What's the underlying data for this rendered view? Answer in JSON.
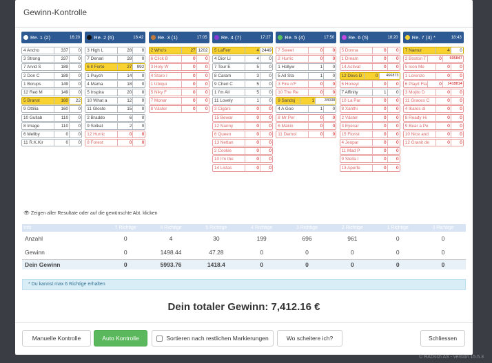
{
  "modal": {
    "title": "Gewinn-Kontrolle"
  },
  "races": [
    {
      "label": "Re. 1 (2)",
      "time": "16:20",
      "color": "#2d5a93",
      "dot": "#ffffff",
      "runners": [
        {
          "name": "4 Ancho",
          "quote": "337",
          "val": "0"
        },
        {
          "name": "3 Strong",
          "quote": "337",
          "val": "0"
        },
        {
          "name": "7 Arvid S",
          "quote": "189",
          "val": "0"
        },
        {
          "name": "2 Don C",
          "quote": "189",
          "val": "0"
        },
        {
          "name": "1 Borups",
          "quote": "149",
          "val": "0"
        },
        {
          "name": "12 Red M",
          "quote": "149",
          "val": "0"
        },
        {
          "name": "5 Branst",
          "quote": "160",
          "val": "22",
          "sel": true
        },
        {
          "name": "9 Ottilia",
          "quote": "160",
          "val": "0"
        },
        {
          "name": "10 Gullab",
          "quote": "110",
          "val": "0"
        },
        {
          "name": "8 Image",
          "quote": "110",
          "val": "0"
        },
        {
          "name": "6 Mellby",
          "quote": "0",
          "val": "0"
        },
        {
          "name": "11 R.K.Kir",
          "quote": "0",
          "val": "0"
        }
      ]
    },
    {
      "label": "Re. 2 (6)",
      "time": "16:42",
      "color": "#2d5a93",
      "dot": "#111111",
      "runners": [
        {
          "name": "3 High L",
          "quote": "28",
          "val": "0"
        },
        {
          "name": "7 Denari",
          "quote": "28",
          "val": "0"
        },
        {
          "name": "6 Il Forte",
          "quote": "27",
          "val": "992",
          "sel": true
        },
        {
          "name": "1 Puych",
          "quote": "14",
          "val": "0"
        },
        {
          "name": "4 Mama",
          "quote": "18",
          "val": "0"
        },
        {
          "name": "5 Inspira",
          "quote": "20",
          "val": "0"
        },
        {
          "name": "10 What a",
          "quote": "12",
          "val": "0"
        },
        {
          "name": "11 Gloste",
          "quote": "15",
          "val": "0"
        },
        {
          "name": "2 Braddo",
          "quote": "6",
          "val": "0"
        },
        {
          "name": "9 Solkat",
          "quote": "2",
          "val": "0"
        },
        {
          "name": "12 Hurric",
          "quote": "0",
          "val": "0",
          "red": true
        },
        {
          "name": "8 Forest",
          "quote": "0",
          "val": "0",
          "red": true
        }
      ]
    },
    {
      "label": "Re. 3 (1)",
      "time": "17:05",
      "color": "#2d5a93",
      "dot": "#c47a3a",
      "runners": [
        {
          "name": "2 Who's",
          "quote": "27",
          "val": "1202",
          "sel": true
        },
        {
          "name": "6 Click B",
          "quote": "0",
          "val": "0",
          "red": true
        },
        {
          "name": "3 Holy W",
          "quote": "0",
          "val": "0",
          "red": true
        },
        {
          "name": "4 Staro I",
          "quote": "0",
          "val": "0",
          "red": true
        },
        {
          "name": "1 Ubiqui",
          "quote": "0",
          "val": "0",
          "red": true
        },
        {
          "name": "5 Niky F",
          "quote": "0",
          "val": "0",
          "red": true
        },
        {
          "name": "7 Monar",
          "quote": "0",
          "val": "0",
          "red": true
        },
        {
          "name": "8 Väster",
          "quote": "0",
          "val": "0",
          "red": true
        }
      ]
    },
    {
      "label": "Re. 4 (7)",
      "time": "17:27",
      "color": "#2d5a93",
      "dot": "#8a3bd6",
      "runners": [
        {
          "name": "5 LaFerr",
          "quote": "4",
          "val": "2449",
          "sel": true
        },
        {
          "name": "4 Dior Li",
          "quote": "4",
          "val": "0"
        },
        {
          "name": "7 Tour E",
          "quote": "5",
          "val": "0"
        },
        {
          "name": "8 Caram",
          "quote": "3",
          "val": "0"
        },
        {
          "name": "9 Cheri C",
          "quote": "5",
          "val": "0"
        },
        {
          "name": "1 I'm All",
          "quote": "5",
          "val": "0"
        },
        {
          "name": "11 Lovely",
          "quote": "1",
          "val": "0"
        },
        {
          "name": "3 Cigars",
          "quote": "0",
          "val": "0",
          "red": true
        },
        {
          "name": "15 Bewar",
          "quote": "0",
          "val": "0",
          "red": true
        },
        {
          "name": "12 Nanny",
          "quote": "0",
          "val": "0",
          "red": true
        },
        {
          "name": "6 Queen",
          "quote": "0",
          "val": "0",
          "red": true
        },
        {
          "name": "13 Nettan",
          "quote": "0",
          "val": "0",
          "red": true
        },
        {
          "name": "2 Cookie",
          "quote": "0",
          "val": "0",
          "red": true
        },
        {
          "name": "10 I'm the",
          "quote": "0",
          "val": "0",
          "red": true
        },
        {
          "name": "14 Listas",
          "quote": "0",
          "val": "0",
          "red": true
        }
      ]
    },
    {
      "label": "Re. 5 (4)",
      "time": "17:50",
      "color": "#2d5a93",
      "dot": "#58c25a",
      "runners": [
        {
          "name": "7 Sweet",
          "quote": "0",
          "val": "0",
          "red": true
        },
        {
          "name": "2 Hurric",
          "quote": "0",
          "val": "0",
          "red": true
        },
        {
          "name": "1 Hollyw",
          "quote": "1",
          "val": "0"
        },
        {
          "name": "5 All Sta",
          "quote": "1",
          "val": "0"
        },
        {
          "name": "3 Fire n'F",
          "quote": "0",
          "val": "0",
          "red": true
        },
        {
          "name": "10 The Re",
          "quote": "0",
          "val": "0",
          "red": true
        },
        {
          "name": "9 Sandsj",
          "quote": "1",
          "val": "34038",
          "sel": true
        },
        {
          "name": "4 A Goo",
          "quote": "1",
          "val": "0"
        },
        {
          "name": "8 Mr Per",
          "quote": "0",
          "val": "0",
          "red": true
        },
        {
          "name": "6 Makin",
          "quote": "0",
          "val": "0",
          "red": true
        },
        {
          "name": "11 Demol",
          "quote": "0",
          "val": "0",
          "red": true
        }
      ]
    },
    {
      "label": "Re. 6 (5)",
      "time": "18:20",
      "color": "#2d5a93",
      "dot": "#c04ae0",
      "runners": [
        {
          "name": "5 Donna",
          "quote": "0",
          "val": "0",
          "red": true
        },
        {
          "name": "1 Dream",
          "quote": "0",
          "val": "0",
          "red": true
        },
        {
          "name": "14 Activat",
          "quote": "0",
          "val": "0",
          "red": true
        },
        {
          "name": "12 Devs D",
          "quote": "0",
          "val": "466873",
          "sel": true
        },
        {
          "name": "6 Honeyl",
          "quote": "0",
          "val": "0",
          "red": true
        },
        {
          "name": "7 Affinity",
          "quote": "1",
          "val": "0"
        },
        {
          "name": "10 La Par",
          "quote": "0",
          "val": "0",
          "red": true
        },
        {
          "name": "8 Xanthi",
          "quote": "0",
          "val": "0",
          "red": true
        },
        {
          "name": "2 Väster",
          "quote": "0",
          "val": "0",
          "red": true
        },
        {
          "name": "3 Eyecar",
          "quote": "0",
          "val": "0",
          "red": true
        },
        {
          "name": "15 Florist",
          "quote": "0",
          "val": "0",
          "red": true
        },
        {
          "name": "4 Jeopar",
          "quote": "0",
          "val": "0",
          "red": true
        },
        {
          "name": "11 Mad P",
          "quote": "0",
          "val": "0",
          "red": true
        },
        {
          "name": "9 Stella I",
          "quote": "0",
          "val": "0",
          "red": true
        },
        {
          "name": "13 Aperfe",
          "quote": "0",
          "val": "0",
          "red": true
        }
      ]
    },
    {
      "label": "Re. 7 (3) *",
      "time": "18:43",
      "color": "#2d5a93",
      "dot": "#f8d231",
      "runners": [
        {
          "name": "7 Namur",
          "quote": "4",
          "val": "0",
          "sel": true
        },
        {
          "name": "2 Boston T",
          "quote": "0",
          "val": "695847",
          "red": true
        },
        {
          "name": "5 Icon Me",
          "quote": "0",
          "val": "0",
          "red": true
        },
        {
          "name": "1 Lorenzo",
          "quote": "0",
          "val": "0",
          "red": true
        },
        {
          "name": "6 Playit Fla",
          "quote": "0",
          "val": "1418814",
          "red": true
        },
        {
          "name": "3 Mojito D",
          "quote": "0",
          "val": "0",
          "red": true
        },
        {
          "name": "11 Graces C",
          "quote": "0",
          "val": "0",
          "red": true
        },
        {
          "name": "4 Ikaros di",
          "quote": "0",
          "val": "0",
          "red": true
        },
        {
          "name": "8 Ready Hi",
          "quote": "0",
          "val": "0",
          "red": true
        },
        {
          "name": "9 Bear a Pe",
          "quote": "0",
          "val": "0",
          "red": true
        },
        {
          "name": "10 Nice and",
          "quote": "0",
          "val": "0",
          "red": true
        },
        {
          "name": "12 Granit de",
          "quote": "0",
          "val": "0",
          "red": true
        }
      ]
    }
  ],
  "info_text": "Zeigen aller Resultate oder auf die gewünschte Abt. klicken",
  "table": {
    "headers": [
      "Info",
      "7 Richtige",
      "6 Richtige",
      "5 Richtige",
      "4 Richtige",
      "3 Richtige",
      "2 Richtige",
      "1 Richtige",
      "0 Richtige"
    ],
    "rows": [
      {
        "label": "Anzahl",
        "cells": [
          "0",
          "4",
          "30",
          "199",
          "696",
          "961",
          "0",
          "0"
        ]
      },
      {
        "label": "Gewinn",
        "cells": [
          "0",
          "1498.44",
          "47.28",
          "0",
          "0",
          "0",
          "0",
          "0"
        ]
      },
      {
        "label": "Dein Gewinn",
        "cells": [
          "0",
          "5993.76",
          "1418.4",
          "0",
          "0",
          "0",
          "0",
          "0"
        ],
        "total": true
      }
    ]
  },
  "note": "* Du kannst max 6 Richtige erhalten",
  "total": "Dein totaler Gewinn: 7,412.16 €",
  "buttons": {
    "manual": "Manuelle Kontrolle",
    "auto": "Auto Kontrolle",
    "sort": "Sortieren nach restlichen Markierungen",
    "where": "Wo scheitere ich?",
    "close": "Schliessen"
  },
  "version": "© RADssh AS - version 15.5.3"
}
